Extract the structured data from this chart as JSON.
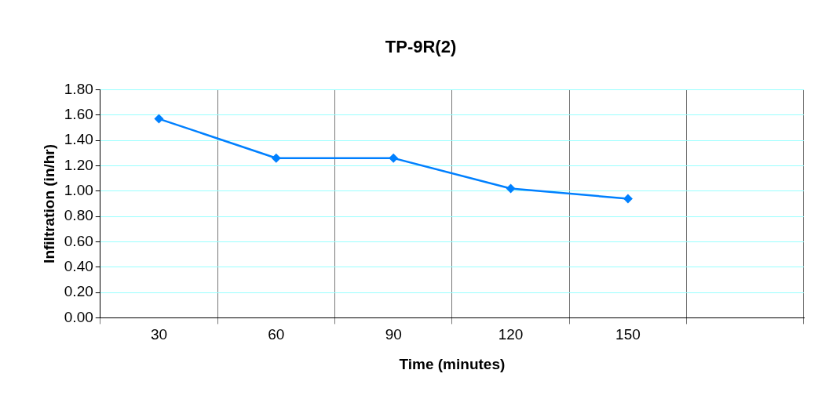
{
  "chart_data": {
    "type": "line",
    "title": "TP-9R(2)",
    "xlabel": "Time (minutes)",
    "ylabel": "Infiltration (in/hr)",
    "categories": [
      "30",
      "60",
      "90",
      "120",
      "150",
      null
    ],
    "series": [
      {
        "color": "#0080ff",
        "values": [
          1.57,
          1.26,
          1.26,
          1.02,
          0.94,
          null
        ]
      }
    ],
    "ylim": [
      0,
      1.8
    ],
    "yticks": [
      {
        "value": 0,
        "label": "0.00"
      },
      {
        "value": 0.2,
        "label": "0.20"
      },
      {
        "value": 0.4,
        "label": "0.40"
      },
      {
        "value": 0.6,
        "label": "0.60"
      },
      {
        "value": 0.8,
        "label": "0.80"
      },
      {
        "value": 1,
        "label": "1.00"
      },
      {
        "value": 1.2,
        "label": "1.20"
      },
      {
        "value": 1.4,
        "label": "1.40"
      },
      {
        "value": 1.6,
        "label": "1.60"
      },
      {
        "value": 1.8,
        "label": "1.80"
      }
    ],
    "grid": true,
    "legend": false,
    "marker": "diamond",
    "line_style": "solid"
  }
}
